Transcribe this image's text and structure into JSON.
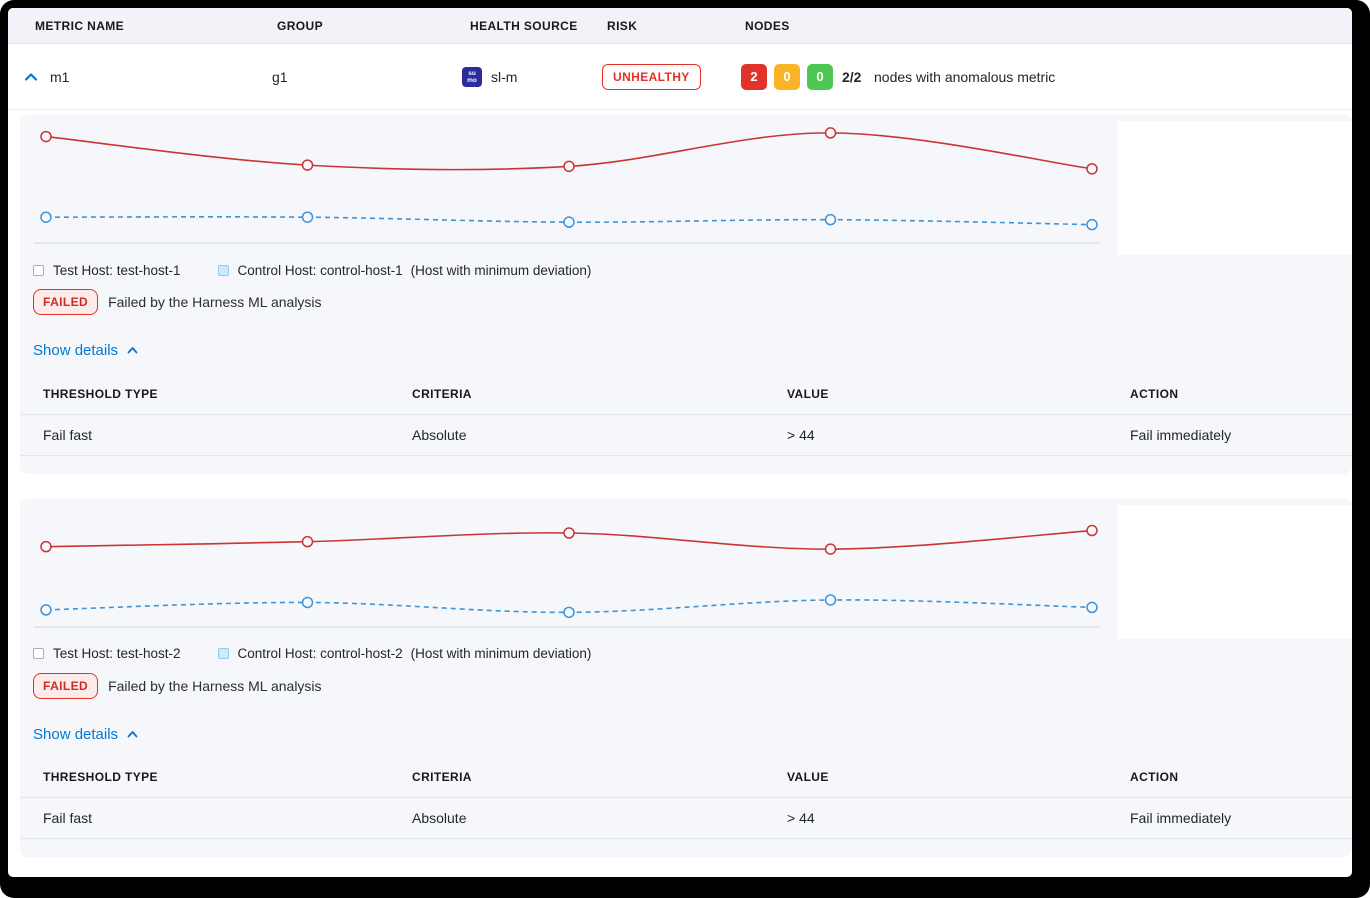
{
  "columns": {
    "metric": "METRIC NAME",
    "group": "GROUP",
    "health_source": "HEALTH SOURCE",
    "risk": "RISK",
    "nodes": "NODES"
  },
  "metric_row": {
    "metric_name": "m1",
    "group": "g1",
    "health_source": "sl-m",
    "health_source_icon": "sumo-logic-icon",
    "health_source_icon_text_top": "su",
    "health_source_icon_text_bottom": "mo",
    "risk_label": "UNHEALTHY",
    "node_counts": [
      {
        "count": "2",
        "status": "unhealthy",
        "color": "#e0342b"
      },
      {
        "count": "0",
        "status": "warning",
        "color": "#f9b527"
      },
      {
        "count": "0",
        "status": "healthy",
        "color": "#4dc952"
      }
    ],
    "nodes_ratio": "2/2",
    "nodes_text": "nodes with anomalous metric"
  },
  "panels": [
    {
      "legend_test": "Test Host: test-host-1",
      "legend_control": "Control Host: control-host-1",
      "legend_note": "(Host with minimum deviation)",
      "status_label": "FAILED",
      "status_text": "Failed by the Harness ML analysis",
      "details_link": "Show details",
      "table": {
        "headers": [
          "THRESHOLD TYPE",
          "CRITERIA",
          "VALUE",
          "ACTION"
        ],
        "rows": [
          [
            "Fail fast",
            "Absolute",
            "> 44",
            "Fail immediately"
          ]
        ]
      }
    },
    {
      "legend_test": "Test Host: test-host-2",
      "legend_control": "Control Host: control-host-2",
      "legend_note": "(Host with minimum deviation)",
      "status_label": "FAILED",
      "status_text": "Failed by the Harness ML analysis",
      "details_link": "Show details",
      "table": {
        "headers": [
          "THRESHOLD TYPE",
          "CRITERIA",
          "VALUE",
          "ACTION"
        ],
        "rows": [
          [
            "Fail fast",
            "Absolute",
            "> 44",
            "Fail immediately"
          ]
        ]
      }
    }
  ],
  "chart_data": [
    {
      "type": "line",
      "x": [
        1,
        2,
        3,
        4,
        5
      ],
      "ylim": [
        0,
        100
      ],
      "grid": false,
      "legend_position": "below",
      "series": [
        {
          "name": "test-host-1",
          "color": "#ca3433",
          "style": "solid",
          "values": [
            85,
            62,
            61,
            88,
            59
          ]
        },
        {
          "name": "control-host-1",
          "color": "#3d94d8",
          "style": "dashed",
          "values": [
            20,
            20,
            16,
            18,
            14
          ]
        }
      ]
    },
    {
      "type": "line",
      "x": [
        1,
        2,
        3,
        4,
        5
      ],
      "ylim": [
        0,
        100
      ],
      "grid": false,
      "legend_position": "below",
      "series": [
        {
          "name": "test-host-2",
          "color": "#ca3433",
          "style": "solid",
          "values": [
            64,
            68,
            75,
            62,
            77
          ]
        },
        {
          "name": "control-host-2",
          "color": "#3d94d8",
          "style": "dashed",
          "values": [
            13,
            19,
            11,
            21,
            15
          ]
        }
      ]
    }
  ],
  "colors": {
    "accent_blue": "#0278d5",
    "risk_red": "#e43326",
    "panel_bg": "#f6f7fb",
    "axis_line": "#d2d6e2"
  }
}
